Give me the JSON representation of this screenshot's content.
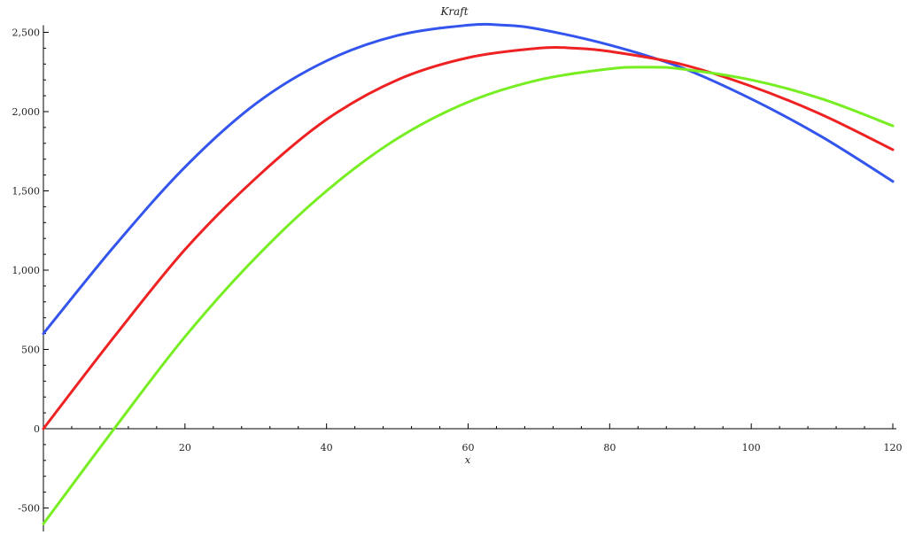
{
  "chart_data": {
    "type": "line",
    "title": "Kraft",
    "xlabel": "x",
    "ylabel": "",
    "xlim": [
      0,
      120
    ],
    "ylim": [
      -600,
      2500
    ],
    "x_ticks": [
      20,
      40,
      60,
      80,
      100,
      120
    ],
    "y_ticks": [
      -500,
      0,
      500,
      1000,
      1500,
      2000,
      2500
    ],
    "x_tick_labels": [
      "20",
      "40",
      "60",
      "80",
      "100",
      "120"
    ],
    "y_tick_labels": [
      "-500",
      "0",
      "500",
      "1,000",
      "1,500",
      "2,000",
      "2,500"
    ],
    "grid": false,
    "legend": "none",
    "series": [
      {
        "color": "#3355ee",
        "points": [
          [
            0,
            600
          ],
          [
            10,
            1150
          ],
          [
            20,
            1650
          ],
          [
            30,
            2050
          ],
          [
            40,
            2320
          ],
          [
            50,
            2480
          ],
          [
            60,
            2545
          ],
          [
            65,
            2545
          ],
          [
            70,
            2520
          ],
          [
            80,
            2420
          ],
          [
            90,
            2280
          ],
          [
            100,
            2080
          ],
          [
            110,
            1840
          ],
          [
            120,
            1560
          ]
        ]
      },
      {
        "color": "#ee2222",
        "points": [
          [
            0,
            0
          ],
          [
            10,
            580
          ],
          [
            20,
            1130
          ],
          [
            30,
            1580
          ],
          [
            40,
            1950
          ],
          [
            50,
            2200
          ],
          [
            60,
            2340
          ],
          [
            70,
            2400
          ],
          [
            75,
            2400
          ],
          [
            80,
            2380
          ],
          [
            90,
            2300
          ],
          [
            100,
            2160
          ],
          [
            110,
            1980
          ],
          [
            120,
            1760
          ]
        ]
      },
      {
        "color": "#77ee22",
        "points": [
          [
            0,
            -600
          ],
          [
            10,
            0
          ],
          [
            20,
            580
          ],
          [
            30,
            1080
          ],
          [
            40,
            1500
          ],
          [
            50,
            1830
          ],
          [
            60,
            2060
          ],
          [
            70,
            2200
          ],
          [
            80,
            2270
          ],
          [
            85,
            2280
          ],
          [
            90,
            2270
          ],
          [
            100,
            2200
          ],
          [
            110,
            2080
          ],
          [
            120,
            1910
          ]
        ]
      }
    ]
  }
}
